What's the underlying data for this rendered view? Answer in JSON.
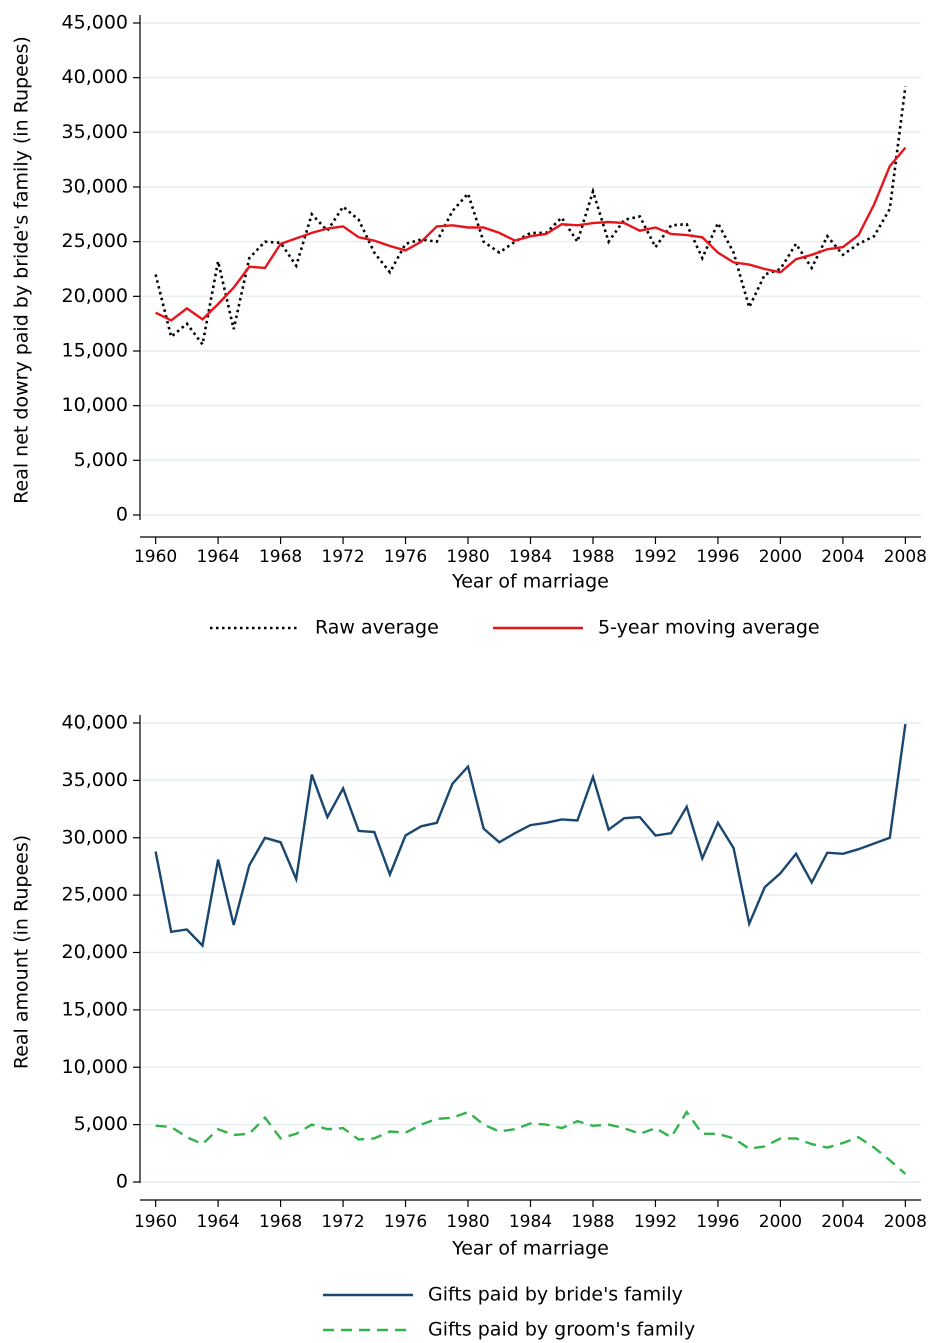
{
  "chart_data": [
    {
      "type": "line",
      "x_label": "Year of marriage",
      "y_label": "Real net dowry paid by bride's family (in Rupees)",
      "x": [
        1960,
        1961,
        1962,
        1963,
        1964,
        1965,
        1966,
        1967,
        1968,
        1969,
        1970,
        1971,
        1972,
        1973,
        1974,
        1975,
        1976,
        1977,
        1978,
        1979,
        1980,
        1981,
        1982,
        1983,
        1984,
        1985,
        1986,
        1987,
        1988,
        1989,
        1990,
        1991,
        1992,
        1993,
        1994,
        1995,
        1996,
        1997,
        1998,
        1999,
        2000,
        2001,
        2002,
        2003,
        2004,
        2005,
        2006,
        2007,
        2008
      ],
      "series": [
        {
          "name": "Raw average",
          "color": "#000000",
          "line_style": "dotted",
          "values": [
            22000,
            16300,
            17500,
            15600,
            23200,
            17000,
            23500,
            25000,
            24900,
            22800,
            27500,
            26000,
            28200,
            27000,
            24000,
            22200,
            24800,
            25200,
            25000,
            27800,
            29400,
            25000,
            24000,
            25000,
            25800,
            25800,
            27200,
            25000,
            29600,
            25000,
            27000,
            27300,
            24500,
            26500,
            26600,
            23500,
            26700,
            24000,
            19000,
            22000,
            22500,
            24800,
            22600,
            25500,
            23800,
            24800,
            25500,
            28000,
            39200
          ]
        },
        {
          "name": "5-year moving average",
          "color": "#e8141c",
          "line_style": "solid",
          "values": [
            18500,
            17800,
            18900,
            17900,
            19300,
            20800,
            22700,
            22600,
            24800,
            25300,
            25800,
            26200,
            26400,
            25400,
            25100,
            24600,
            24200,
            25000,
            26400,
            26500,
            26300,
            26300,
            25800,
            25100,
            25500,
            25700,
            26600,
            26500,
            26700,
            26800,
            26700,
            26000,
            26300,
            25700,
            25600,
            25400,
            24000,
            23100,
            22900,
            22500,
            22200,
            23400,
            23800,
            24300,
            24500,
            25600,
            28400,
            31900,
            33600
          ]
        }
      ],
      "xlim": [
        1959,
        2009
      ],
      "xticks": [
        1960,
        1964,
        1968,
        1972,
        1976,
        1980,
        1984,
        1988,
        1992,
        1996,
        2000,
        2004,
        2008
      ],
      "ylim": [
        0,
        45000
      ],
      "yticks": [
        0,
        {
          "value": 5000,
          "label": "5,000"
        },
        {
          "value": 10000,
          "label": "10,000"
        },
        {
          "value": 15000,
          "label": "15,000"
        },
        {
          "value": 20000,
          "label": "20,000"
        },
        {
          "value": 25000,
          "label": "25,000"
        },
        {
          "value": 30000,
          "label": "30,000"
        },
        {
          "value": 35000,
          "label": "35,000"
        },
        {
          "value": 40000,
          "label": "40,000"
        },
        {
          "value": 45000,
          "label": "45,000"
        }
      ],
      "grid": true,
      "legend_position": "bottom"
    },
    {
      "type": "line",
      "x_label": "Year of marriage",
      "y_label": "Real amount (in Rupees)",
      "x": [
        1960,
        1961,
        1962,
        1963,
        1964,
        1965,
        1966,
        1967,
        1968,
        1969,
        1970,
        1971,
        1972,
        1973,
        1974,
        1975,
        1976,
        1977,
        1978,
        1979,
        1980,
        1981,
        1982,
        1983,
        1984,
        1985,
        1986,
        1987,
        1988,
        1989,
        1990,
        1991,
        1992,
        1993,
        1994,
        1995,
        1996,
        1997,
        1998,
        1999,
        2000,
        2001,
        2002,
        2003,
        2004,
        2005,
        2006,
        2007,
        2008
      ],
      "series": [
        {
          "name": "Gifts paid by bride's family",
          "color": "#1a476f",
          "line_style": "solid",
          "values": [
            28800,
            21800,
            22000,
            20600,
            28100,
            22400,
            27600,
            30000,
            29600,
            26400,
            35500,
            31800,
            34300,
            30600,
            30500,
            26800,
            30200,
            31000,
            31300,
            34700,
            36200,
            30800,
            29600,
            30400,
            31100,
            31300,
            31600,
            31500,
            35300,
            30700,
            31700,
            31800,
            30200,
            30400,
            32700,
            28200,
            31300,
            29100,
            22500,
            25700,
            26900,
            28600,
            26100,
            28700,
            28600,
            29000,
            29500,
            30000,
            39900
          ]
        },
        {
          "name": "Gifts paid by groom's family",
          "color": "#33b34a",
          "line_style": "dashed",
          "values": [
            4900,
            4800,
            3900,
            3300,
            4600,
            4100,
            4200,
            5600,
            3800,
            4200,
            5000,
            4600,
            4700,
            3700,
            3800,
            4400,
            4300,
            5000,
            5500,
            5600,
            6100,
            5000,
            4400,
            4600,
            5100,
            5000,
            4700,
            5300,
            4900,
            5000,
            4700,
            4200,
            4700,
            3900,
            6100,
            4200,
            4200,
            3800,
            2900,
            3100,
            3800,
            3800,
            3300,
            3000,
            3400,
            3900,
            3000,
            1900,
            700
          ]
        }
      ],
      "xlim": [
        1959,
        2009
      ],
      "xticks": [
        1960,
        1964,
        1968,
        1972,
        1976,
        1980,
        1984,
        1988,
        1992,
        1996,
        2000,
        2004,
        2008
      ],
      "ylim": [
        0,
        40000
      ],
      "yticks": [
        0,
        {
          "value": 5000,
          "label": "5,000"
        },
        {
          "value": 10000,
          "label": "10,000"
        },
        {
          "value": 15000,
          "label": "15,000"
        },
        {
          "value": 20000,
          "label": "20,000"
        },
        {
          "value": 25000,
          "label": "25,000"
        },
        {
          "value": 30000,
          "label": "30,000"
        },
        {
          "value": 35000,
          "label": "35,000"
        },
        {
          "value": 40000,
          "label": "40,000"
        }
      ],
      "grid": true,
      "legend_position": "bottom"
    }
  ]
}
